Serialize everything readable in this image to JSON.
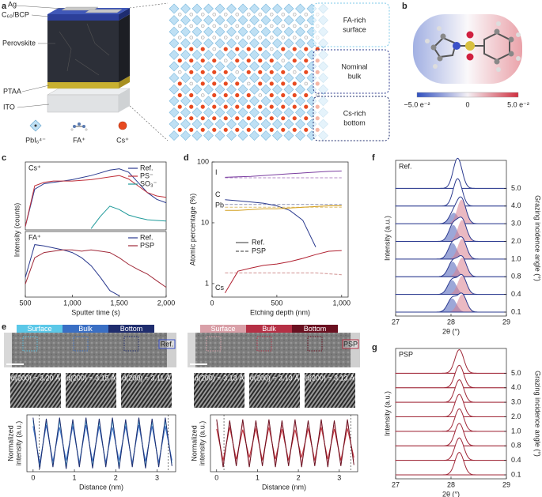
{
  "panel_labels": [
    "a",
    "b",
    "c",
    "d",
    "e",
    "f",
    "g"
  ],
  "device_layers": [
    "Ag",
    "C₆₀/BCP",
    "Perovskite",
    "PTAA",
    "ITO"
  ],
  "species": [
    "PbI₆⁴⁻",
    "FA⁺",
    "Cs⁺"
  ],
  "regions": [
    [
      "FA-rich",
      "surface"
    ],
    [
      "Nominal",
      "bulk"
    ],
    [
      "Cs-rich",
      "bottom"
    ]
  ],
  "colorbar_labels": [
    "−5.0 e⁻²",
    "0",
    "5.0 e⁻²"
  ],
  "micrographs": [
    {
      "zones": [
        "Surface",
        "Bulk",
        "Bottom"
      ],
      "tag": "Ref.",
      "spacings": [
        "d(200) = 3.20 Å",
        "d(200) = 3.15 Å",
        "d(200) = 3.11 Å"
      ]
    },
    {
      "zones": [
        "Surface",
        "Bulk",
        "Bottom"
      ],
      "tag": "PSP",
      "spacings": [
        "d(200) = 3.13 Å",
        "d(200) = 3.13 Å",
        "d(200) = 3.13 Å"
      ]
    }
  ],
  "chart_data": [
    {
      "type": "line",
      "tag": "Cs⁺",
      "ylabel": "Intensity (counts)",
      "x": [
        500,
        600,
        700,
        800,
        900,
        1000,
        1100,
        1200,
        1300,
        1400,
        1500,
        1600,
        1700,
        1800,
        1900,
        2000
      ],
      "xlim": [
        500,
        2000
      ],
      "ylim": [
        0,
        1
      ],
      "series": [
        {
          "name": "Ref.",
          "color": "#2b3a8f",
          "values": [
            0.05,
            0.6,
            0.68,
            0.7,
            0.72,
            0.74,
            0.77,
            0.8,
            0.84,
            0.88,
            0.9,
            0.85,
            0.7,
            0.55,
            0.45,
            0.4
          ]
        },
        {
          "name": "PS⁻",
          "color": "#c0303a",
          "values": [
            0.05,
            0.65,
            0.7,
            0.72,
            0.72,
            0.72,
            0.73,
            0.74,
            0.76,
            0.78,
            0.8,
            0.75,
            0.65,
            0.55,
            0.5,
            0.48
          ]
        },
        {
          "name": "SO₃⁻",
          "color": "#1f9a9a",
          "values": [
            null,
            null,
            null,
            null,
            null,
            null,
            null,
            0.02,
            0.2,
            0.35,
            0.3,
            0.22,
            0.18,
            0.15,
            0.14,
            0.13
          ]
        }
      ]
    },
    {
      "type": "line",
      "tag": "FA⁺",
      "xlabel": "Sputter time (s)",
      "x": [
        500,
        600,
        700,
        800,
        900,
        1000,
        1100,
        1200,
        1300,
        1400,
        1500,
        1600,
        1700,
        1800,
        1900,
        2000
      ],
      "xlim": [
        500,
        2000
      ],
      "ylim": [
        0,
        1
      ],
      "xticks": [
        500,
        {
          "value": 1000,
          "label": "1,000"
        },
        {
          "value": 1500,
          "label": "1,500"
        },
        {
          "value": 2000,
          "label": "2,000"
        }
      ],
      "series": [
        {
          "name": "Ref.",
          "color": "#2b3a8f",
          "values": [
            0.3,
            0.8,
            0.78,
            0.75,
            0.72,
            0.68,
            0.6,
            0.48,
            0.3,
            0.1,
            0.02,
            null,
            null,
            null,
            null,
            null
          ]
        },
        {
          "name": "PSP",
          "color": "#a02838",
          "values": [
            0.2,
            0.6,
            0.68,
            0.7,
            0.72,
            0.72,
            0.7,
            0.72,
            0.7,
            0.68,
            0.6,
            0.5,
            0.42,
            0.35,
            0.25,
            0.15
          ]
        }
      ]
    },
    {
      "type": "line",
      "log_y": true,
      "series_labels": true,
      "xlabel": "Etching depth (nm)",
      "ylabel": "Atomic percentage (%)",
      "x": [
        100,
        200,
        300,
        400,
        500,
        600,
        700,
        800,
        900,
        1000
      ],
      "xlim": [
        0,
        1050
      ],
      "xticks": [
        0,
        500,
        {
          "value": 1000,
          "label": "1,000"
        }
      ],
      "ylim": [
        0.6,
        100
      ],
      "yticks": [
        1,
        10,
        100
      ],
      "styles": [
        {
          "name": "Ref.",
          "dashed": false
        },
        {
          "name": "PSP",
          "dashed": true
        }
      ],
      "series": [
        {
          "name": "I",
          "color": "#7b3fa0",
          "psp_color": "#b48ac8",
          "values": [
            56,
            57,
            58,
            60,
            62,
            64,
            66,
            68,
            70,
            71
          ],
          "psp_values": [
            55,
            55,
            55,
            55,
            55,
            55,
            55,
            55,
            55,
            55
          ]
        },
        {
          "name": "C",
          "color": "#2b3a8f",
          "psp_color": "#8a8fb0",
          "values": [
            24,
            23,
            22,
            21,
            19,
            16,
            11,
            4,
            null,
            null
          ],
          "psp_values": [
            20,
            20,
            20,
            20,
            20,
            20,
            20,
            20,
            20,
            20
          ]
        },
        {
          "name": "Pb",
          "color": "#d4a020",
          "psp_color": "#e0c070",
          "values": [
            16,
            16,
            16.5,
            17,
            17,
            17.5,
            18,
            18.5,
            19,
            19
          ],
          "psp_values": [
            18,
            18,
            18,
            18,
            18,
            18,
            18,
            18,
            18,
            18
          ]
        },
        {
          "name": "Cs",
          "color": "#b02030",
          "psp_color": "#d09090",
          "values": [
            0.7,
            1.6,
            1.8,
            2.0,
            2.1,
            2.3,
            2.6,
            3.0,
            3.4,
            3.5
          ],
          "psp_values": [
            1.5,
            1.5,
            1.5,
            1.5,
            1.5,
            1.5,
            1.5,
            1.5,
            1.45,
            1.4
          ]
        }
      ]
    },
    {
      "type": "line",
      "xlabel": "Distance (nm)",
      "ylabel": [
        "Normalized",
        "intensity (a.u.)"
      ],
      "x": [
        0,
        0.16,
        0.32,
        0.48,
        0.64,
        0.8,
        0.96,
        1.12,
        1.28,
        1.44,
        1.6,
        1.76,
        1.92,
        2.08,
        2.24,
        2.4,
        2.56,
        2.72,
        2.88,
        3.04,
        3.2,
        3.36
      ],
      "xlim": [
        -0.15,
        3.45
      ],
      "xticks": [
        0,
        1,
        2,
        3
      ],
      "ylim": [
        0,
        1
      ],
      "vlines": [
        0.15,
        3.27
      ],
      "series": [
        {
          "color": "#5bc8e8",
          "values": [
            0.9,
            0.1,
            0.88,
            0.12,
            0.9,
            0.1,
            0.86,
            0.14,
            0.9,
            0.1,
            0.88,
            0.12,
            0.9,
            0.1,
            0.86,
            0.12,
            0.9,
            0.1,
            0.88,
            0.12,
            0.9,
            0.15
          ]
        },
        {
          "color": "#3a6fc4",
          "values": [
            0.8,
            0.15,
            0.82,
            0.18,
            0.78,
            0.2,
            0.8,
            0.15,
            0.82,
            0.18,
            0.8,
            0.16,
            0.78,
            0.2,
            0.8,
            0.15,
            0.82,
            0.18,
            0.8,
            0.16,
            0.8,
            0.2
          ]
        },
        {
          "color": "#1f2d6e",
          "values": [
            0.95,
            0.05,
            0.93,
            0.08,
            0.95,
            0.05,
            0.92,
            0.08,
            0.95,
            0.06,
            0.93,
            0.08,
            0.95,
            0.05,
            0.92,
            0.08,
            0.95,
            0.06,
            0.93,
            0.08,
            0.95,
            0.1
          ]
        }
      ]
    },
    {
      "type": "line",
      "xlabel": "Distance (nm)",
      "ylabel": [
        "Normalized",
        "intensity (a.u.)"
      ],
      "x": [
        0,
        0.16,
        0.32,
        0.48,
        0.64,
        0.8,
        0.96,
        1.12,
        1.28,
        1.44,
        1.6,
        1.76,
        1.92,
        2.08,
        2.24,
        2.4,
        2.56,
        2.72,
        2.88,
        3.04,
        3.2,
        3.36
      ],
      "xlim": [
        -0.15,
        3.45
      ],
      "xticks": [
        0,
        1,
        2,
        3
      ],
      "ylim": [
        0,
        1
      ],
      "vlines": [
        0.18,
        3.28
      ],
      "series": [
        {
          "color": "#e8a0a8",
          "values": [
            0.85,
            0.15,
            0.82,
            0.18,
            0.85,
            0.15,
            0.8,
            0.2,
            0.85,
            0.15,
            0.82,
            0.18,
            0.85,
            0.15,
            0.8,
            0.18,
            0.85,
            0.15,
            0.82,
            0.18,
            0.85,
            0.2
          ]
        },
        {
          "color": "#c0303a",
          "values": [
            0.75,
            0.2,
            0.78,
            0.22,
            0.74,
            0.25,
            0.76,
            0.2,
            0.78,
            0.22,
            0.75,
            0.2,
            0.74,
            0.25,
            0.76,
            0.2,
            0.78,
            0.22,
            0.75,
            0.2,
            0.76,
            0.25
          ]
        },
        {
          "color": "#6a1020",
          "values": [
            0.92,
            0.08,
            0.9,
            0.1,
            0.92,
            0.08,
            0.9,
            0.1,
            0.92,
            0.08,
            0.9,
            0.1,
            0.92,
            0.08,
            0.9,
            0.1,
            0.92,
            0.08,
            0.9,
            0.1,
            0.92,
            0.12
          ]
        }
      ]
    },
    {
      "type": "ridgeline",
      "tag": "Ref.",
      "xlabel": "2θ (°)",
      "ylabel": "Intensity (a.u.)",
      "y2label": "Grazing incidence angle (°)",
      "xlim": [
        27,
        29
      ],
      "xticks": [
        27,
        28,
        29
      ],
      "peak_width": 0.08,
      "color": "#2b3a8f",
      "fill_colors": [
        "#4a5fb8",
        "#d98090"
      ],
      "series": [
        {
          "name": "0.1",
          "peaks": [
            28.02,
            28.2
          ],
          "heights": [
            0.5,
            0.65
          ]
        },
        {
          "name": "0.4",
          "peaks": [
            28.02,
            28.2
          ],
          "heights": [
            0.52,
            0.68
          ]
        },
        {
          "name": "0.8",
          "peaks": [
            28.03,
            28.2
          ],
          "heights": [
            0.55,
            0.7
          ]
        },
        {
          "name": "1.0",
          "peaks": [
            28.03,
            28.2
          ],
          "heights": [
            0.58,
            0.74
          ]
        },
        {
          "name": "2.0",
          "peaks": [
            28.04,
            28.2
          ],
          "heights": [
            0.6,
            0.78
          ]
        },
        {
          "name": "3.0",
          "peaks": [
            28.05,
            28.19
          ],
          "heights": [
            0.4,
            0.88
          ]
        },
        {
          "name": "4.0",
          "peaks": [
            28.12
          ],
          "heights": [
            1.0
          ]
        },
        {
          "name": "5.0",
          "peaks": [
            28.12
          ],
          "heights": [
            1.1
          ]
        }
      ]
    },
    {
      "type": "ridgeline",
      "tag": "PSP",
      "xlabel": "2θ (°)",
      "ylabel": "Intensity (a.u.)",
      "y2label": "Grazing incidence angle (°)",
      "xlim": [
        27,
        29
      ],
      "xticks": [
        27,
        28,
        29
      ],
      "peak_width": 0.08,
      "color": "#a02838",
      "fill_colors": [
        "#d98090"
      ],
      "series": [
        {
          "name": "0.1",
          "peaks": [
            28.15
          ],
          "heights": [
            1.0
          ]
        },
        {
          "name": "0.4",
          "peaks": [
            28.15
          ],
          "heights": [
            1.0
          ]
        },
        {
          "name": "0.8",
          "peaks": [
            28.15
          ],
          "heights": [
            1.0
          ]
        },
        {
          "name": "1.0",
          "peaks": [
            28.15
          ],
          "heights": [
            1.0
          ]
        },
        {
          "name": "2.0",
          "peaks": [
            28.15
          ],
          "heights": [
            1.0
          ]
        },
        {
          "name": "3.0",
          "peaks": [
            28.15
          ],
          "heights": [
            1.0
          ]
        },
        {
          "name": "4.0",
          "peaks": [
            28.15
          ],
          "heights": [
            1.0
          ]
        },
        {
          "name": "5.0",
          "peaks": [
            28.15
          ],
          "heights": [
            1.05
          ]
        }
      ]
    }
  ]
}
